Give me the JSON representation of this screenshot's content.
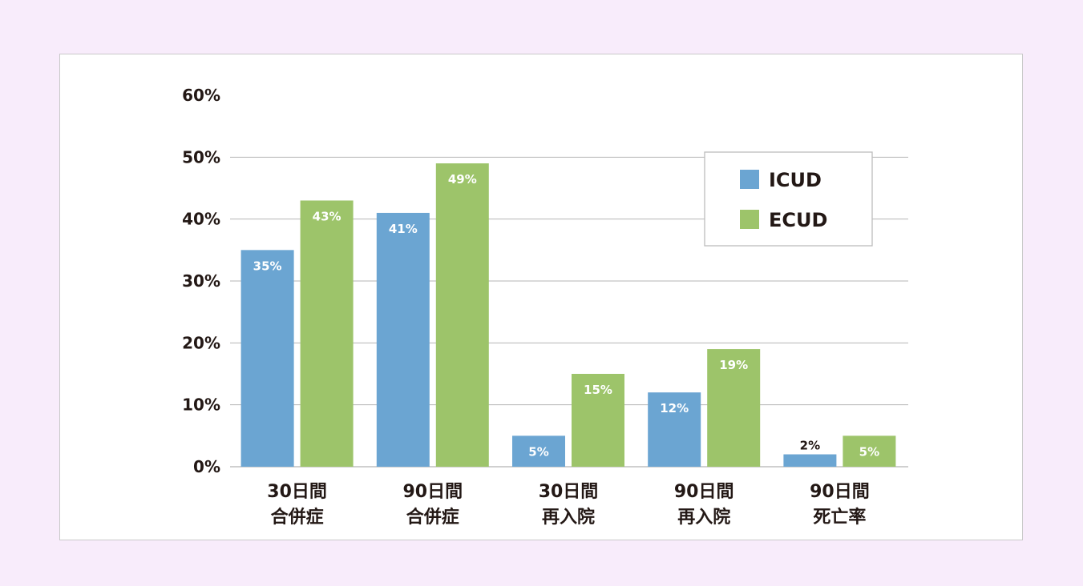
{
  "chart_data": {
    "type": "bar",
    "categories": [
      [
        "30日間",
        "合併症"
      ],
      [
        "90日間",
        "合併症"
      ],
      [
        "30日間",
        "再入院"
      ],
      [
        "90日間",
        "再入院"
      ],
      [
        "90日間",
        "死亡率"
      ]
    ],
    "series": [
      {
        "name": "ICUD",
        "values": [
          35,
          41,
          5,
          12,
          2
        ],
        "labels": [
          "35%",
          "41%",
          "5%",
          "12%",
          "2%"
        ],
        "color": "#6ba5d2"
      },
      {
        "name": "ECUD",
        "values": [
          43,
          49,
          15,
          19,
          5
        ],
        "labels": [
          "43%",
          "49%",
          "15%",
          "19%",
          "5%"
        ],
        "color": "#9dc46a"
      }
    ],
    "ylim": [
      0,
      60
    ],
    "yticks": [
      0,
      10,
      20,
      30,
      40,
      50,
      60
    ],
    "ytick_labels": [
      "0%",
      "10%",
      "20%",
      "30%",
      "40%",
      "50%",
      "60%"
    ],
    "grid": true,
    "legend_position": "top-right",
    "title": "",
    "xlabel": "",
    "ylabel": ""
  },
  "colors": {
    "background": "#f8ecfb",
    "panel": "#ffffff",
    "grid": "#b5b5b5",
    "text": "#231815",
    "label_inside": "#ffffff"
  }
}
